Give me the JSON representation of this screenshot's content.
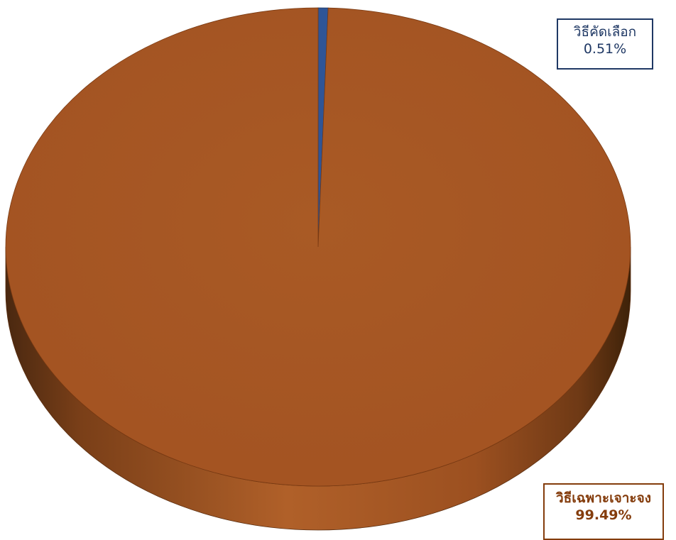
{
  "chart_data": {
    "type": "pie",
    "title": "",
    "slices": [
      {
        "label": "วิธีคัดเลือก",
        "value": 0.51,
        "value_label": "0.51%",
        "color": "#2f5597"
      },
      {
        "label": "วิธีเฉพาะเจาะจง",
        "value": 99.49,
        "value_label": "99.49%",
        "color": "#a55523"
      }
    ],
    "style": "3d",
    "legend": "none",
    "data_labels": "callout"
  }
}
